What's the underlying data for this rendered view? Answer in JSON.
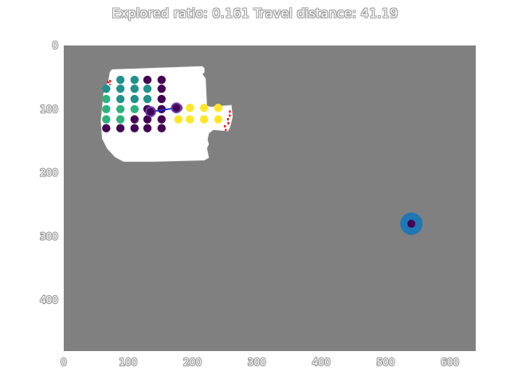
{
  "title": "Explored ratio: 0.161  Travel distance: 41.19",
  "colors": {
    "unexplored": "#808080",
    "free": "#ffffff",
    "path": "#1f2fcc",
    "frontier": "#ff0000",
    "target_outer": "#1f77b4",
    "target_inner": "#440154",
    "viridis_low": "#440154",
    "viridis_mid": "#21918c",
    "viridis_mid2": "#2db27d",
    "viridis_high": "#fde725"
  },
  "chart_data": {
    "type": "scatter",
    "title": "Explored ratio: 0.161  Travel distance: 41.19",
    "xlabel": "",
    "ylabel": "",
    "xlim": [
      0,
      640
    ],
    "ylim": [
      480,
      0
    ],
    "xticks": [
      0,
      100,
      200,
      300,
      400,
      500,
      600
    ],
    "yticks": [
      0,
      100,
      200,
      300,
      400
    ],
    "grid": false,
    "explored_polygon": [
      [
        75,
        38
      ],
      [
        215,
        33
      ],
      [
        218,
        36
      ],
      [
        218,
        42
      ],
      [
        215,
        45
      ],
      [
        220,
        52
      ],
      [
        222,
        95
      ],
      [
        228,
        97
      ],
      [
        260,
        94
      ],
      [
        262,
        112
      ],
      [
        258,
        128
      ],
      [
        255,
        134
      ],
      [
        232,
        132
      ],
      [
        225,
        138
      ],
      [
        223,
        148
      ],
      [
        225,
        155
      ],
      [
        222,
        161
      ],
      [
        225,
        176
      ],
      [
        218,
        180
      ],
      [
        140,
        182
      ],
      [
        93,
        182
      ],
      [
        80,
        175
      ],
      [
        68,
        162
      ],
      [
        60,
        146
      ],
      [
        58,
        118
      ],
      [
        60,
        98
      ],
      [
        62,
        76
      ],
      [
        70,
        54
      ],
      [
        72,
        42
      ]
    ],
    "points": [
      {
        "x": 88,
        "y": 54,
        "c": "viridis_mid"
      },
      {
        "x": 110,
        "y": 54,
        "c": "viridis_mid"
      },
      {
        "x": 130,
        "y": 54,
        "c": "viridis_low"
      },
      {
        "x": 152,
        "y": 54,
        "c": "viridis_low"
      },
      {
        "x": 66,
        "y": 68,
        "c": "viridis_mid"
      },
      {
        "x": 88,
        "y": 68,
        "c": "viridis_mid"
      },
      {
        "x": 110,
        "y": 68,
        "c": "viridis_mid"
      },
      {
        "x": 130,
        "y": 68,
        "c": "viridis_mid"
      },
      {
        "x": 152,
        "y": 68,
        "c": "viridis_low"
      },
      {
        "x": 66,
        "y": 84,
        "c": "viridis_mid2"
      },
      {
        "x": 88,
        "y": 84,
        "c": "viridis_mid"
      },
      {
        "x": 110,
        "y": 84,
        "c": "viridis_mid"
      },
      {
        "x": 130,
        "y": 84,
        "c": "viridis_mid"
      },
      {
        "x": 152,
        "y": 84,
        "c": "viridis_low"
      },
      {
        "x": 66,
        "y": 100,
        "c": "viridis_mid2"
      },
      {
        "x": 88,
        "y": 100,
        "c": "viridis_mid2"
      },
      {
        "x": 110,
        "y": 100,
        "c": "viridis_mid2"
      },
      {
        "x": 130,
        "y": 100,
        "c": "viridis_low"
      },
      {
        "x": 152,
        "y": 100,
        "c": "viridis_low"
      },
      {
        "x": 178,
        "y": 98,
        "c": "viridis_low"
      },
      {
        "x": 196,
        "y": 98,
        "c": "viridis_high"
      },
      {
        "x": 218,
        "y": 98,
        "c": "viridis_high"
      },
      {
        "x": 240,
        "y": 98,
        "c": "viridis_high"
      },
      {
        "x": 66,
        "y": 116,
        "c": "viridis_mid2"
      },
      {
        "x": 88,
        "y": 116,
        "c": "viridis_mid2"
      },
      {
        "x": 110,
        "y": 116,
        "c": "viridis_low"
      },
      {
        "x": 130,
        "y": 116,
        "c": "viridis_low"
      },
      {
        "x": 152,
        "y": 116,
        "c": "viridis_low"
      },
      {
        "x": 178,
        "y": 116,
        "c": "viridis_high"
      },
      {
        "x": 196,
        "y": 116,
        "c": "viridis_high"
      },
      {
        "x": 218,
        "y": 116,
        "c": "viridis_high"
      },
      {
        "x": 240,
        "y": 116,
        "c": "viridis_high"
      },
      {
        "x": 66,
        "y": 130,
        "c": "viridis_low"
      },
      {
        "x": 88,
        "y": 130,
        "c": "viridis_low"
      },
      {
        "x": 110,
        "y": 130,
        "c": "viridis_low"
      },
      {
        "x": 130,
        "y": 130,
        "c": "viridis_low"
      },
      {
        "x": 152,
        "y": 130,
        "c": "viridis_low"
      }
    ],
    "path": [
      [
        135,
        104
      ],
      [
        175,
        98
      ]
    ],
    "path_endpoints": [
      [
        135,
        104
      ],
      [
        175,
        98
      ]
    ],
    "frontier_segments": [
      [
        [
          72,
          54
        ],
        [
          72,
          62
        ]
      ],
      [
        [
          68,
          56
        ],
        [
          70,
          60
        ]
      ],
      [
        [
          250,
          125
        ],
        [
          252,
          134
        ]
      ],
      [
        [
          258,
          102
        ],
        [
          258,
          112
        ]
      ],
      [
        [
          255,
          114
        ],
        [
          256,
          126
        ]
      ]
    ],
    "target": {
      "x": 540,
      "y": 280
    }
  }
}
